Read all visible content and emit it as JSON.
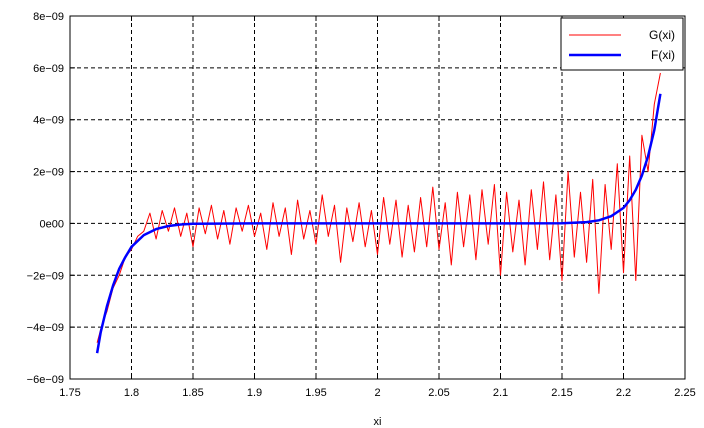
{
  "chart_data": {
    "type": "line",
    "title": "",
    "xlabel": "xi",
    "ylabel": "",
    "xlim": [
      1.75,
      2.25
    ],
    "ylim": [
      -6e-09,
      8e-09
    ],
    "x_ticks": [
      1.75,
      1.8,
      1.85,
      1.9,
      1.95,
      2,
      2.05,
      2.1,
      2.15,
      2.2,
      2.25
    ],
    "x_tick_labels": [
      "1.75",
      "1.8",
      "1.85",
      "1.9",
      "1.95",
      "2",
      "2.05",
      "2.1",
      "2.15",
      "2.2",
      "2.25"
    ],
    "y_ticks": [
      -6e-09,
      -4e-09,
      -2e-09,
      0,
      2e-09,
      4e-09,
      6e-09,
      8e-09
    ],
    "y_tick_labels": [
      "−6e−09",
      "−4e−09",
      "−2e−09",
      "0e00",
      "2e−09",
      "4e−09",
      "6e−09",
      "8e−09"
    ],
    "grid": true,
    "legend_position": "top-right",
    "series": [
      {
        "name": "G(xi)",
        "color": "#ff0000",
        "x": [
          1.772,
          1.776,
          1.78,
          1.785,
          1.79,
          1.795,
          1.8,
          1.805,
          1.81,
          1.815,
          1.82,
          1.825,
          1.83,
          1.835,
          1.84,
          1.845,
          1.85,
          1.855,
          1.86,
          1.865,
          1.87,
          1.875,
          1.88,
          1.885,
          1.89,
          1.895,
          1.9,
          1.905,
          1.91,
          1.915,
          1.92,
          1.925,
          1.93,
          1.935,
          1.94,
          1.945,
          1.95,
          1.955,
          1.96,
          1.965,
          1.97,
          1.975,
          1.98,
          1.985,
          1.99,
          1.995,
          2.0,
          2.005,
          2.01,
          2.015,
          2.02,
          2.025,
          2.03,
          2.035,
          2.04,
          2.045,
          2.05,
          2.055,
          2.06,
          2.065,
          2.07,
          2.075,
          2.08,
          2.085,
          2.09,
          2.095,
          2.1,
          2.105,
          2.11,
          2.115,
          2.12,
          2.125,
          2.13,
          2.135,
          2.14,
          2.145,
          2.15,
          2.155,
          2.16,
          2.165,
          2.17,
          2.175,
          2.18,
          2.185,
          2.19,
          2.195,
          2.2,
          2.205,
          2.21,
          2.215,
          2.22,
          2.225,
          2.23
        ],
        "y": [
          -4.6e-09,
          -3.9e-09,
          -3.4e-09,
          -2.5e-09,
          -2e-09,
          -1.3e-09,
          -1e-09,
          -5e-10,
          -3e-10,
          4e-10,
          -6e-10,
          5e-10,
          -3e-10,
          6e-10,
          -5e-10,
          4e-10,
          -9e-10,
          6e-10,
          -4e-10,
          7e-10,
          -6e-10,
          5e-10,
          -8e-10,
          6e-10,
          -3e-10,
          7e-10,
          -5e-10,
          4e-10,
          -1e-09,
          8e-10,
          -5e-10,
          6e-10,
          -1.2e-09,
          9e-10,
          -6e-10,
          5e-10,
          -8e-10,
          1.1e-09,
          -5e-10,
          7e-10,
          -1.5e-09,
          6e-10,
          -7e-10,
          8e-10,
          -9e-10,
          5e-10,
          -1.2e-09,
          1e-09,
          -8e-10,
          9e-10,
          -1.3e-09,
          7e-10,
          -1.1e-09,
          1e-09,
          -9e-10,
          1.4e-09,
          -1e-09,
          8e-10,
          -1.6e-09,
          1.2e-09,
          -9e-10,
          1.1e-09,
          -1.4e-09,
          1.3e-09,
          -8e-10,
          1.5e-09,
          -2e-09,
          1.2e-09,
          -1.1e-09,
          9e-10,
          -1.6e-09,
          1.3e-09,
          -1e-09,
          1.6e-09,
          -1.4e-09,
          1.1e-09,
          -2.2e-09,
          2e-09,
          -1.3e-09,
          1.2e-09,
          -1.5e-09,
          1.7e-09,
          -2.7e-09,
          1.5e-09,
          -1e-09,
          2.3e-09,
          -1.9e-09,
          2.6e-09,
          -2.2e-09,
          3.4e-09,
          2e-09,
          4.6e-09,
          5.8e-09
        ]
      },
      {
        "name": "F(xi)",
        "color": "#0000ff",
        "x": [
          1.772,
          1.775,
          1.78,
          1.785,
          1.79,
          1.795,
          1.8,
          1.81,
          1.82,
          1.83,
          1.84,
          1.85,
          1.9,
          1.95,
          2.0,
          2.05,
          2.1,
          2.15,
          2.17,
          2.18,
          2.19,
          2.2,
          2.205,
          2.21,
          2.215,
          2.22,
          2.225,
          2.23
        ],
        "y": [
          -5e-09,
          -4.2e-09,
          -3.2e-09,
          -2.4e-09,
          -1.75e-09,
          -1.3e-09,
          -9e-10,
          -4.5e-10,
          -2.2e-10,
          -1e-10,
          -4e-11,
          -1e-11,
          0,
          0,
          0,
          0,
          0,
          1e-11,
          5e-11,
          1.2e-10,
          2.8e-10,
          6e-10,
          9e-10,
          1.3e-09,
          1.85e-09,
          2.6e-09,
          3.6e-09,
          5e-09
        ]
      }
    ]
  }
}
